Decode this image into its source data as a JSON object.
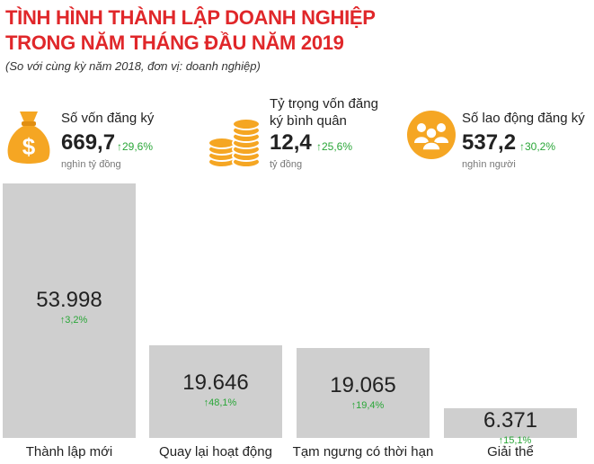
{
  "header": {
    "title_line1": "TÌNH HÌNH THÀNH LẬP DOANH NGHIỆP",
    "title_line2": "TRONG NĂM THÁNG ĐẦU NĂM 2019",
    "subtitle": "(So với cùng kỳ năm 2018, đơn vị: doanh nghiệp)"
  },
  "stats": [
    {
      "label": "Số vốn đăng ký",
      "value": "669,7",
      "change": "29,6%",
      "unit": "nghìn tỷ đồng",
      "icon": "money-bag-icon"
    },
    {
      "label_line1": "Tỷ trọng vốn đăng",
      "label_line2": "ký bình quân",
      "value": "12,4",
      "change": "25,6%",
      "unit": "tỷ đồng",
      "icon": "coin-stack-icon"
    },
    {
      "label": "Số lao động đăng ký",
      "value": "537,2",
      "change": "30,2%",
      "unit": "nghìn người",
      "icon": "people-icon"
    }
  ],
  "colors": {
    "accent": "#e0272a",
    "icon": "#f5a623",
    "up": "#2aa638",
    "bar": "#cfcfcf"
  },
  "chart_data": {
    "type": "bar",
    "categories": [
      "Thành lập mới",
      "Quay lại hoạt động",
      "Tạm ngưng có thời hạn",
      "Giải thể"
    ],
    "values": [
      53998,
      19646,
      19065,
      6371
    ],
    "value_labels": [
      "53.998",
      "19.646",
      "19.065",
      "6.371"
    ],
    "changes": [
      "3,2%",
      "48,1%",
      "19,4%",
      "15,1%"
    ],
    "change_direction": [
      "up",
      "up",
      "up",
      "up"
    ],
    "title": "",
    "xlabel": "",
    "ylabel": "",
    "ylim": [
      0,
      53998
    ],
    "grid": false
  }
}
